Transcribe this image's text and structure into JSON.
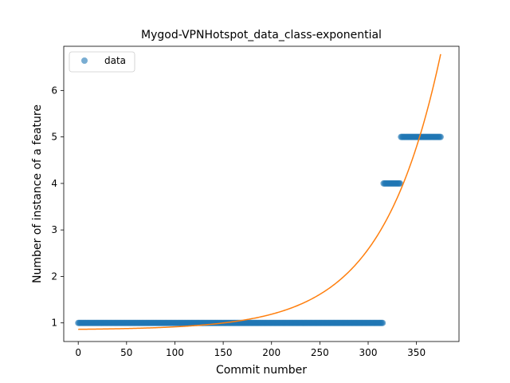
{
  "chart_data": {
    "type": "scatter",
    "title": "Mygod-VPNHotspot_data_class-exponential",
    "xlabel": "Commit number",
    "ylabel": "Number of instance of a feature",
    "xlim": [
      -15,
      394
    ],
    "ylim": [
      0.6,
      6.95
    ],
    "xticks": [
      0,
      50,
      100,
      150,
      200,
      250,
      300,
      350
    ],
    "yticks": [
      1,
      2,
      3,
      4,
      5,
      6
    ],
    "grid": false,
    "legend": {
      "position": "upper-left",
      "entries": [
        "data"
      ]
    },
    "series": [
      {
        "name": "data",
        "kind": "points",
        "color": "#1f77b4",
        "segments": [
          {
            "x_start": 0,
            "x_end": 315,
            "y": 1
          },
          {
            "x_start": 316,
            "x_end": 333,
            "y": 4
          },
          {
            "x_start": 334,
            "x_end": 375,
            "y": 5
          }
        ]
      },
      {
        "kind": "line",
        "color": "#ff7f0e",
        "model": {
          "form": "a*exp(b*x)+c",
          "a": 0.0127,
          "b": 0.01639,
          "c": 0.85
        },
        "x_range": [
          0,
          375
        ]
      }
    ]
  }
}
